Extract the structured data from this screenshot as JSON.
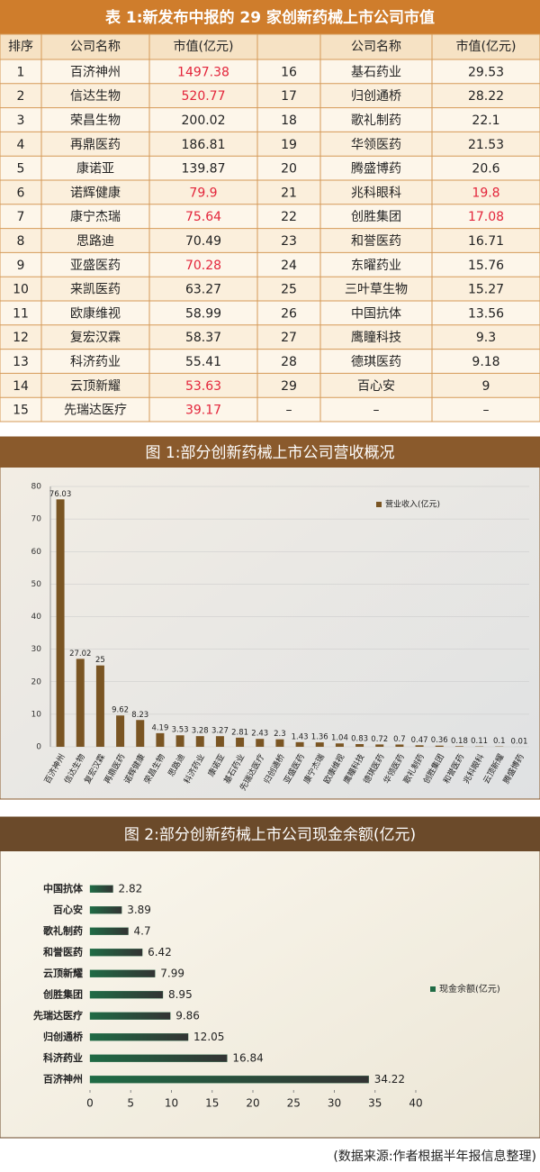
{
  "table": {
    "title": "表 1:新发布中报的 29 家创新药械上市公司市值",
    "header": [
      "排序",
      "公司名称",
      "市值(亿元)",
      "公司名称",
      "市值(亿元)"
    ],
    "rows": [
      [
        "1",
        "百济神州",
        "1497.38",
        "16",
        "基石药业",
        "29.53"
      ],
      [
        "2",
        "信达生物",
        "520.77",
        "17",
        "归创通桥",
        "28.22"
      ],
      [
        "3",
        "荣昌生物",
        "200.02",
        "18",
        "歌礼制药",
        "22.1"
      ],
      [
        "4",
        "再鼎医药",
        "186.81",
        "19",
        "华领医药",
        "21.53"
      ],
      [
        "5",
        "康诺亚",
        "139.87",
        "20",
        "腾盛博药",
        "20.6"
      ],
      [
        "6",
        "诺辉健康",
        "79.9",
        "21",
        "兆科眼科",
        "19.8"
      ],
      [
        "7",
        "康宁杰瑞",
        "75.64",
        "22",
        "创胜集团",
        "17.08"
      ],
      [
        "8",
        "思路迪",
        "70.49",
        "23",
        "和誉医药",
        "16.71"
      ],
      [
        "9",
        "亚盛医药",
        "70.28",
        "24",
        "东曜药业",
        "15.76"
      ],
      [
        "10",
        "来凯医药",
        "63.27",
        "25",
        "三叶草生物",
        "15.27"
      ],
      [
        "11",
        "欧康维视",
        "58.99",
        "26",
        "中国抗体",
        "13.56"
      ],
      [
        "12",
        "复宏汉霖",
        "58.37",
        "27",
        "鹰瞳科技",
        "9.3"
      ],
      [
        "13",
        "科济药业",
        "55.41",
        "28",
        "德琪医药",
        "9.18"
      ],
      [
        "14",
        "云顶新耀",
        "53.63",
        "29",
        "百心安",
        "9"
      ],
      [
        "15",
        "先瑞达医疗",
        "39.17",
        "–",
        "–",
        "–"
      ]
    ],
    "highlight": {
      "color": "#e3253b",
      "cells": [
        [
          0,
          2
        ],
        [
          1,
          2
        ],
        [
          5,
          2
        ],
        [
          6,
          2
        ],
        [
          8,
          2
        ],
        [
          13,
          2
        ],
        [
          14,
          2
        ],
        [
          5,
          5
        ],
        [
          6,
          5
        ]
      ]
    }
  },
  "chart_data": [
    {
      "type": "bar",
      "title": "图 1:部分创新药械上市公司营收概况",
      "color": "#7a5523",
      "grid": true,
      "legend": "upper-right",
      "categories": [
        "百济神州",
        "信达生物",
        "复宏汉霖",
        "再鼎医药",
        "诺辉健康",
        "荣昌生物",
        "思路迪",
        "科济药业",
        "康诺亚",
        "基石药业",
        "先瑞达医疗",
        "归创通桥",
        "亚盛医药",
        "康宁杰瑞",
        "欧康维视",
        "鹰瞳科技",
        "德琪医药",
        "华领医药",
        "歌礼制药",
        "创胜集团",
        "和誉医药",
        "兆科眼科",
        "云顶新耀",
        "腾盛博药"
      ],
      "series": [
        {
          "name": "营业收入(亿元)",
          "color": "#7a5523",
          "values": [
            76.03,
            27.02,
            25,
            9.62,
            8.23,
            4.19,
            3.53,
            3.28,
            3.27,
            2.81,
            2.43,
            2.3,
            1.43,
            1.36,
            1.04,
            0.83,
            0.72,
            0.7,
            0.47,
            0.36,
            0.18,
            0.11,
            0.1,
            0.01
          ]
        }
      ],
      "ylim": [
        0,
        80
      ],
      "yticks": [
        0,
        10,
        20,
        30,
        40,
        50,
        60,
        70,
        80
      ]
    },
    {
      "type": "hbar",
      "title": "图 2:部分创新药械上市公司现金余额(亿元)",
      "grid": false,
      "legend": "right",
      "categories": [
        "中国抗体",
        "百心安",
        "歌礼制药",
        "和誉医药",
        "云顶新耀",
        "创胜集团",
        "先瑞达医疗",
        "归创通桥",
        "科济药业",
        "百济神州"
      ],
      "series": [
        {
          "name": "现金余额(亿元)",
          "color": "#1f6b45",
          "values": [
            2.82,
            3.89,
            4.7,
            6.42,
            7.99,
            8.95,
            9.86,
            12.05,
            16.84,
            34.22
          ]
        }
      ],
      "xlim": [
        0,
        40
      ],
      "xticks": [
        0,
        5,
        10,
        15,
        20,
        25,
        30,
        35,
        40
      ]
    }
  ],
  "footer": "(数据来源:作者根据半年报信息整理)"
}
